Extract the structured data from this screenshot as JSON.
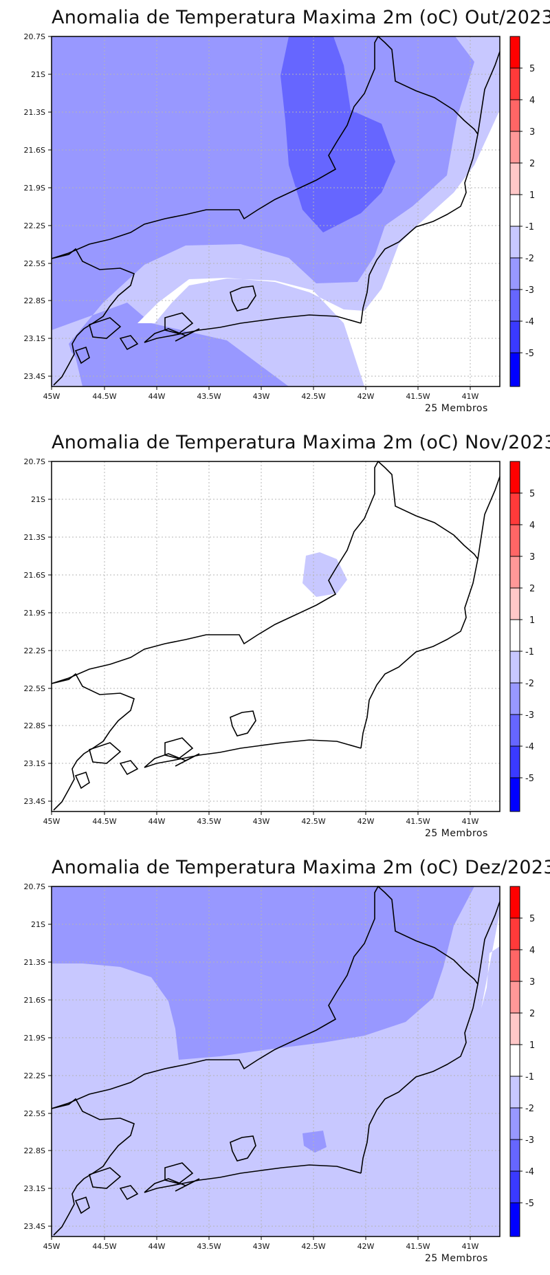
{
  "colorbar": {
    "levels": [
      "5",
      "4",
      "3",
      "2",
      "1",
      "-1",
      "-2",
      "-3",
      "-4",
      "-5"
    ],
    "colors": [
      "#ff0000",
      "#ff3a3a",
      "#ff6666",
      "#ff9898",
      "#ffc8c8",
      "#ffffff",
      "#c8c8ff",
      "#9898ff",
      "#6666ff",
      "#3a3aff",
      "#0000ff"
    ]
  },
  "axes": {
    "lon_labels": [
      "45W",
      "44.5W",
      "44W",
      "43.5W",
      "43W",
      "42.5W",
      "42W",
      "41.5W",
      "41W"
    ],
    "lat_labels": [
      "20.7S",
      "21S",
      "21.3S",
      "21.6S",
      "21.9S",
      "22.2S",
      "22.5S",
      "22.8S",
      "23.1S",
      "23.4S"
    ]
  },
  "panels": [
    {
      "title": "Anomalia de Temperatura Maxima 2m (oC) Out/2023",
      "members": "25 Membros"
    },
    {
      "title": "Anomalia de Temperatura Maxima 2m (oC) Nov/2023",
      "members": "25 Membros"
    },
    {
      "title": "Anomalia de Temperatura Maxima 2m (oC) Dez/2023",
      "members": "25 Membros"
    }
  ]
}
